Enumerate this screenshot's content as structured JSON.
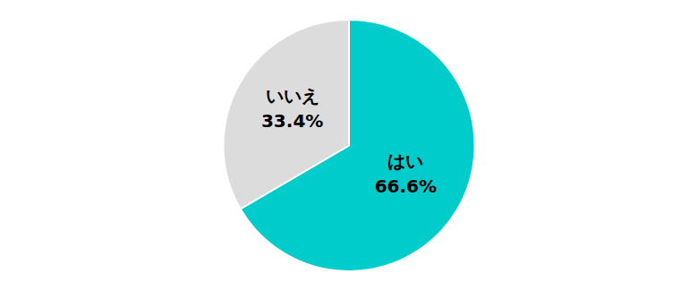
{
  "chart_data": {
    "type": "pie",
    "categories": [
      "はい",
      "いいえ"
    ],
    "values": [
      66.6,
      33.4
    ],
    "value_labels": [
      "66.6%",
      "33.4%"
    ],
    "colors": [
      "#00CCCC",
      "#DCDCDC"
    ],
    "data_labels": true
  }
}
